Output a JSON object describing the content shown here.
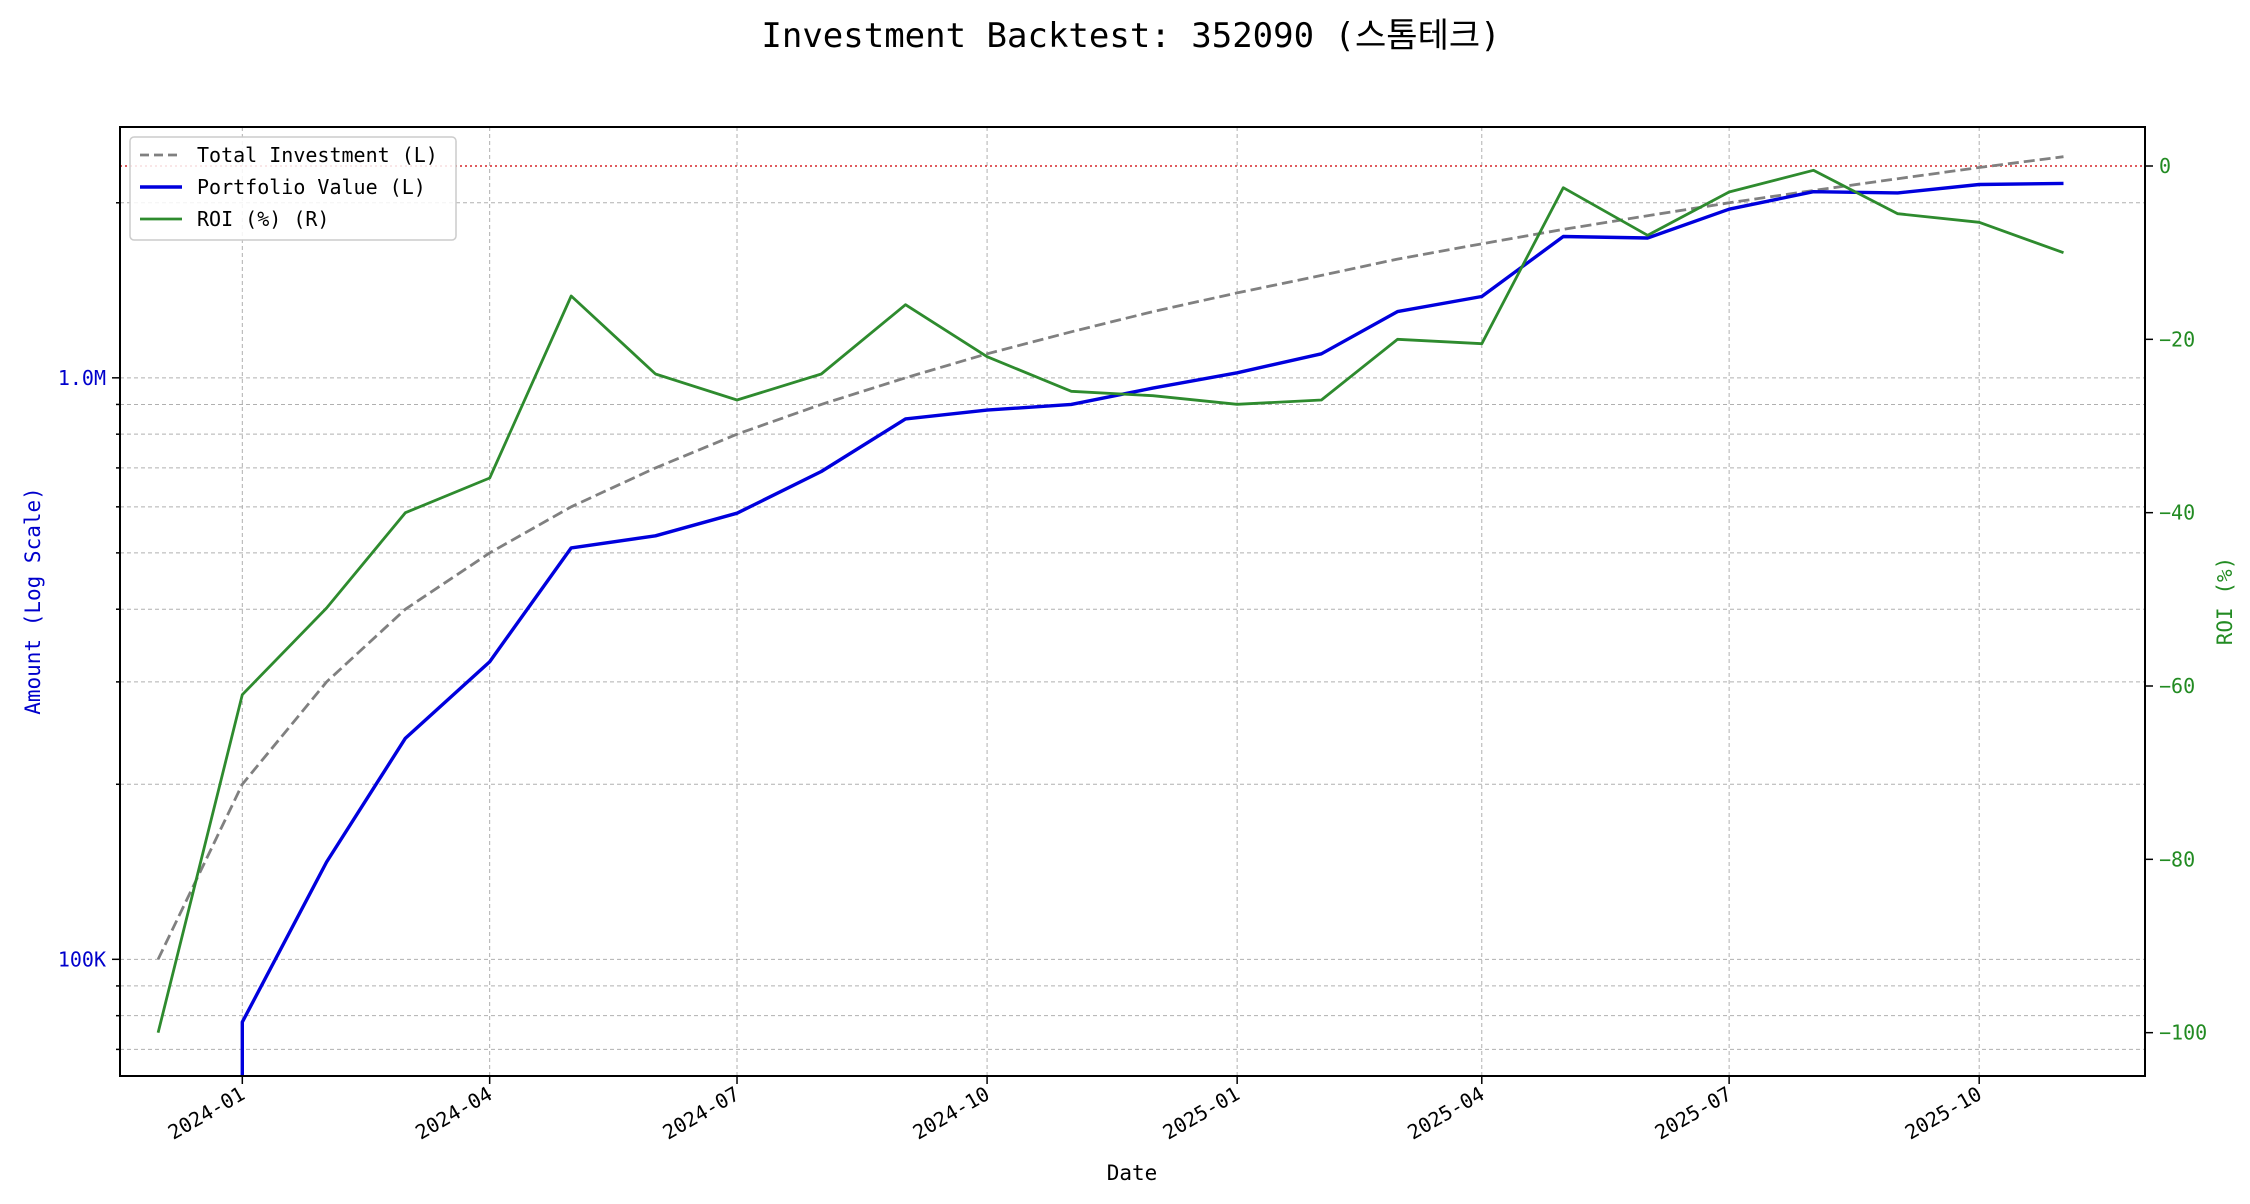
{
  "chart_data": {
    "type": "line",
    "title": "Investment Backtest: 352090 (스톰테크)",
    "xlabel": "Date",
    "ylabel_left": "Amount (Log Scale)",
    "ylabel_right": "ROI (%)",
    "left_scale": "log",
    "left_ylim": [
      63000,
      2700000
    ],
    "right_ylim": [
      -105,
      4.5
    ],
    "grid": true,
    "legend_position": "top-left",
    "x_ticks": [
      "2024-01",
      "2024-04",
      "2024-07",
      "2024-10",
      "2025-01",
      "2025-04",
      "2025-07",
      "2025-10"
    ],
    "left_ticks": [
      {
        "value": 100000,
        "label": "100K"
      },
      {
        "value": 1000000,
        "label": "1.0M"
      }
    ],
    "right_ticks": [
      {
        "value": 0,
        "label": "0"
      },
      {
        "value": -20,
        "label": "−20"
      },
      {
        "value": -40,
        "label": "−40"
      },
      {
        "value": -60,
        "label": "−60"
      },
      {
        "value": -80,
        "label": "−80"
      },
      {
        "value": -100,
        "label": "−100"
      }
    ],
    "zero_line": {
      "axis": "right",
      "value": 0,
      "color": "#d62728",
      "style": "dotted"
    },
    "x": [
      "2023-12",
      "2024-01",
      "2024-02",
      "2024-03",
      "2024-04",
      "2024-05",
      "2024-06",
      "2024-07",
      "2024-08",
      "2024-09",
      "2024-10",
      "2024-11",
      "2024-12",
      "2025-01",
      "2025-02",
      "2025-03",
      "2025-04",
      "2025-05",
      "2025-06",
      "2025-07",
      "2025-08",
      "2025-09",
      "2025-10",
      "2025-11"
    ],
    "series": [
      {
        "name": "Total Investment (L)",
        "axis": "left",
        "color": "#808080",
        "style": "dashed",
        "values": [
          100000,
          200000,
          300000,
          400000,
          500000,
          600000,
          700000,
          800000,
          900000,
          1000000,
          1100000,
          1200000,
          1300000,
          1400000,
          1500000,
          1600000,
          1700000,
          1800000,
          1900000,
          2000000,
          2100000,
          2200000,
          2300000,
          2400000
        ]
      },
      {
        "name": "Portfolio Value (L)",
        "axis": "left",
        "color": "#0000dd",
        "style": "solid",
        "values": [
          null,
          78000,
          147000,
          240000,
          325000,
          510000,
          535000,
          585000,
          690000,
          850000,
          880000,
          900000,
          960000,
          1020000,
          1100000,
          1300000,
          1380000,
          1750000,
          1740000,
          1950000,
          2090000,
          2080000,
          2150000,
          2160000
        ]
      },
      {
        "name": "ROI (%) (R)",
        "axis": "right",
        "color": "#2e8b2e",
        "style": "solid",
        "values": [
          -100,
          -61,
          -51,
          -40,
          -36,
          -15,
          -24,
          -27,
          -24,
          -16,
          -22,
          -26,
          -26.5,
          -27.5,
          -27,
          -20,
          -20.5,
          -2.5,
          -8,
          -3,
          -0.5,
          -5.5,
          -6.5,
          -10
        ]
      }
    ]
  }
}
